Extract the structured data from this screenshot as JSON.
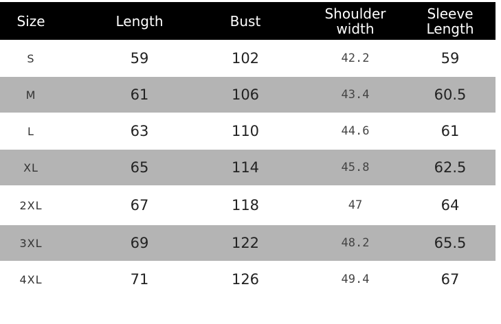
{
  "colors": {
    "header_bg": "#000000",
    "header_text": "#ffffff",
    "stripe": "#b4b4b4"
  },
  "headers": [
    "Size",
    "Length",
    "Bust",
    "Shoulder\nwidth",
    "Sleeve\nLength"
  ],
  "rows": [
    [
      "S",
      "59",
      "102",
      "42.2",
      "59"
    ],
    [
      "M",
      "61",
      "106",
      "43.4",
      "60.5"
    ],
    [
      "L",
      "63",
      "110",
      "44.6",
      "61"
    ],
    [
      "XL",
      "65",
      "114",
      "45.8",
      "62.5"
    ],
    [
      "2XL",
      "67",
      "118",
      "47",
      "64"
    ],
    [
      "3XL",
      "69",
      "122",
      "48.2",
      "65.5"
    ],
    [
      "4XL",
      "71",
      "126",
      "49.4",
      "67"
    ]
  ]
}
